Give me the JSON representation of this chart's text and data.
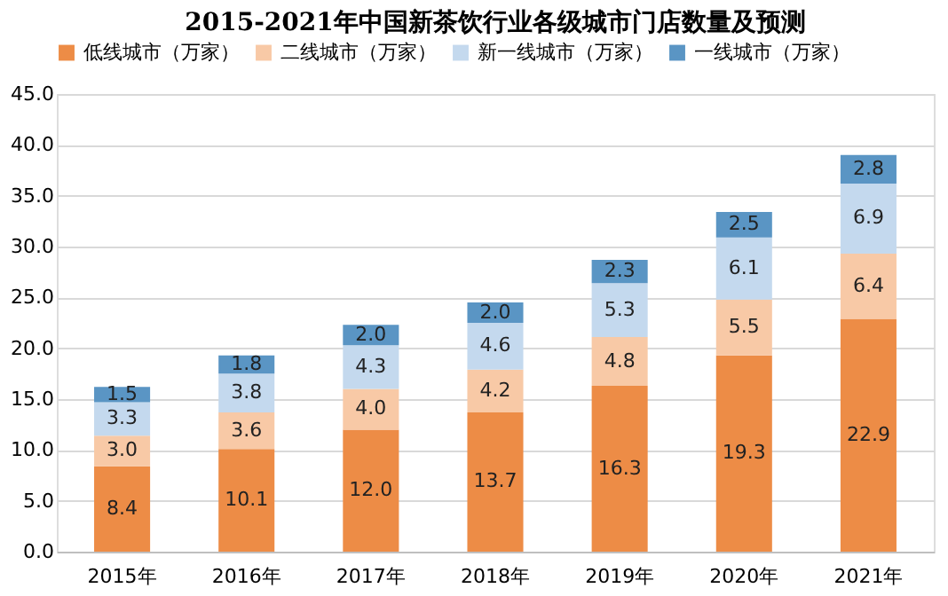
{
  "chart_data": {
    "type": "bar",
    "title": "2015-2021年中国新茶饮行业各级城市门店数量及预测",
    "stacked": true,
    "categories": [
      "2015年",
      "2016年",
      "2017年",
      "2018年",
      "2019年",
      "2020年",
      "2021年"
    ],
    "series": [
      {
        "name": "低线城市（万家）",
        "color": "#ed8c46",
        "values": [
          8.4,
          10.1,
          12.0,
          13.7,
          16.3,
          19.3,
          22.9
        ],
        "value_labels": [
          "8.4",
          "10.1",
          "12.0",
          "13.7",
          "16.3",
          "19.3",
          "22.9"
        ]
      },
      {
        "name": "二线城市（万家）",
        "color": "#f8c9a6",
        "values": [
          3.0,
          3.6,
          4.0,
          4.2,
          4.8,
          5.5,
          6.4
        ],
        "value_labels": [
          "3.0",
          "3.6",
          "4.0",
          "4.2",
          "4.8",
          "5.5",
          "6.4"
        ]
      },
      {
        "name": "新一线城市（万家）",
        "color": "#c4d9ee",
        "values": [
          3.3,
          3.8,
          4.3,
          4.6,
          5.3,
          6.1,
          6.9
        ],
        "value_labels": [
          "3.3",
          "3.8",
          "4.3",
          "4.6",
          "5.3",
          "6.1",
          "6.9"
        ]
      },
      {
        "name": "一线城市（万家）",
        "color": "#5a95c4",
        "values": [
          1.5,
          1.8,
          2.0,
          2.0,
          2.3,
          2.5,
          2.8
        ],
        "value_labels": [
          "1.5",
          "1.8",
          "2.0",
          "2.0",
          "2.3",
          "2.5",
          "2.8"
        ]
      }
    ],
    "ylim": [
      0,
      45
    ],
    "yticks": [
      {
        "value": 0,
        "label": "0.0"
      },
      {
        "value": 5,
        "label": "5.0"
      },
      {
        "value": 10,
        "label": "10.0"
      },
      {
        "value": 15,
        "label": "15.0"
      },
      {
        "value": 20,
        "label": "20.0"
      },
      {
        "value": 25,
        "label": "25.0"
      },
      {
        "value": 30,
        "label": "30.0"
      },
      {
        "value": 35,
        "label": "35.0"
      },
      {
        "value": 40,
        "label": "40.0"
      },
      {
        "value": 45,
        "label": "45.0"
      }
    ],
    "grid": "y",
    "legend": "top"
  }
}
